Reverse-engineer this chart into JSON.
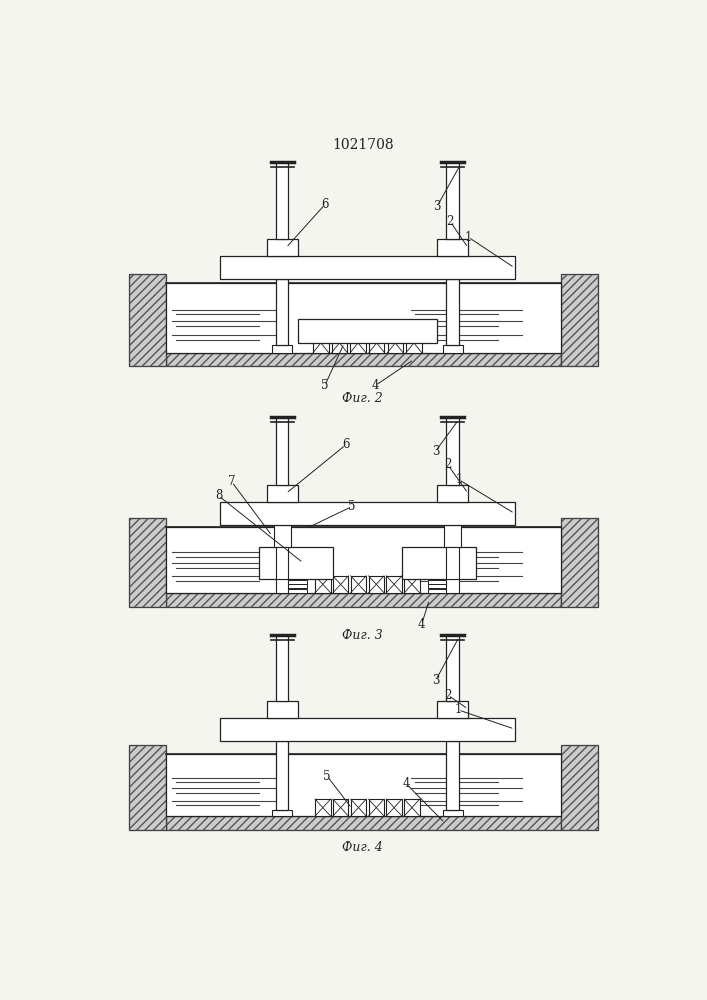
{
  "title": "1021708",
  "title_fontsize": 10,
  "fig_captions": [
    "Фиг. 2",
    "Фиг. 3",
    "Фиг. 4"
  ],
  "bg_color": "#f5f5f0",
  "line_color": "#222222",
  "ground_fc": "#cccccc",
  "wall_fc": "#cccccc"
}
